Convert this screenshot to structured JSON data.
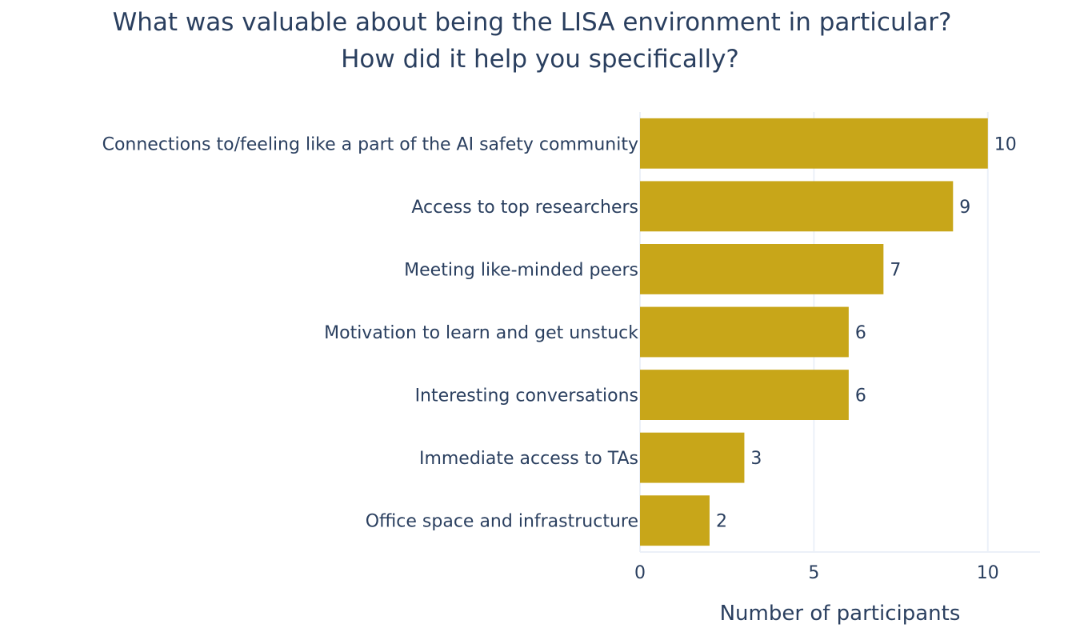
{
  "chart_data": {
    "type": "bar",
    "orientation": "horizontal",
    "title_lines": [
      "What was valuable about being the LISA environment in particular?",
      "How did it help you specifically?"
    ],
    "categories": [
      "Connections to/feeling like a part of the AI safety community",
      "Access to top researchers",
      "Meeting like-minded peers",
      "Motivation to learn and get unstuck",
      "Interesting conversations",
      "Immediate access to TAs",
      "Office space and infrastructure"
    ],
    "values": [
      10,
      9,
      7,
      6,
      6,
      3,
      2
    ],
    "value_labels": [
      "10",
      "9",
      "7",
      "6",
      "6",
      "3",
      "2"
    ],
    "xlabel": "Number of participants",
    "ylabel": "",
    "xlim": [
      0,
      11.5
    ],
    "xticks": [
      0,
      5,
      10
    ],
    "xtick_labels": [
      "0",
      "5",
      "10"
    ],
    "grid": true,
    "bar_color": "#c8a619"
  }
}
